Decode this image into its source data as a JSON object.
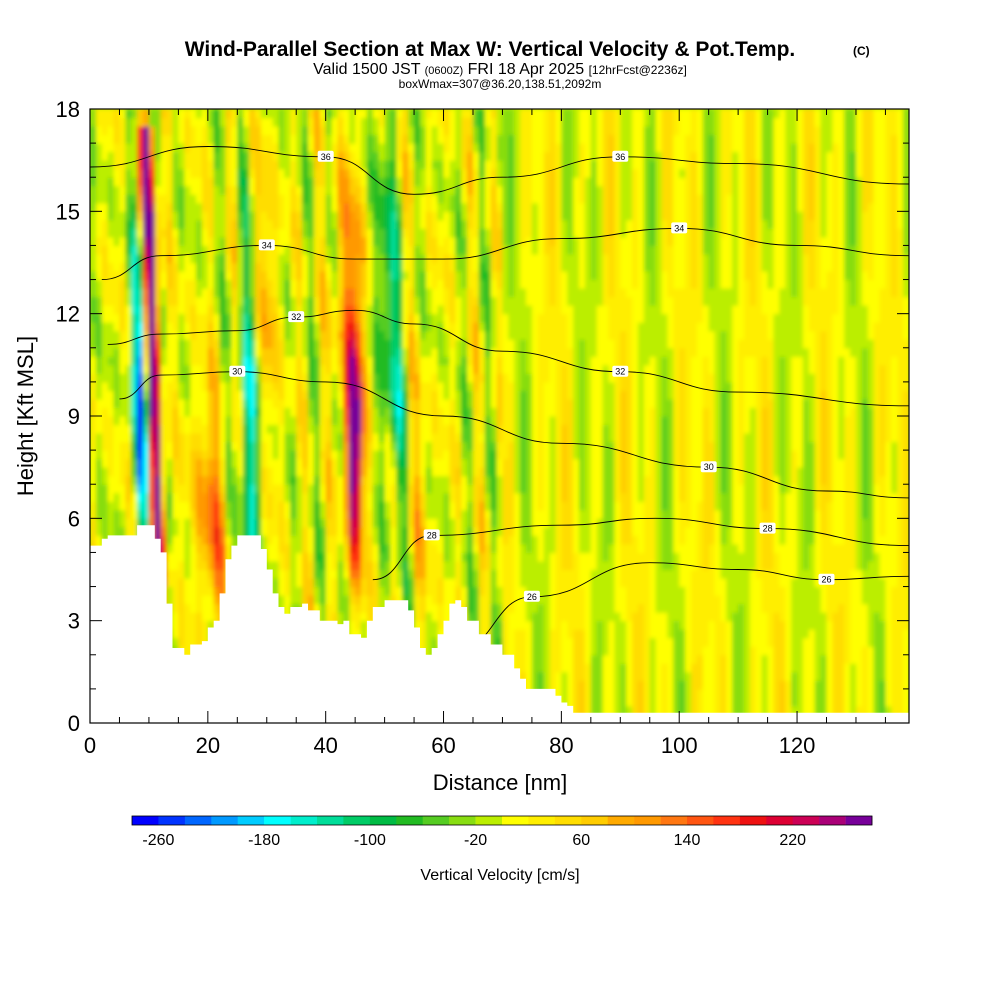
{
  "chart_data": {
    "type": "heatmap",
    "title": "Wind-Parallel Section at Max W: Vertical Velocity & Pot.Temp.",
    "title_mark": "(C)",
    "subtitle": {
      "prefix": "Valid 1500 JST",
      "small1": "(0600Z)",
      "middle": "FRI 18 Apr 2025",
      "small2": "[12hrFcst@2236z]"
    },
    "subtitle2": "boxWmax=307@36.20,138.51,2092m",
    "xlabel": "Distance [nm]",
    "ylabel": "Height [Kft MSL]",
    "xlim": [
      0,
      139
    ],
    "ylim": [
      0,
      18
    ],
    "x_ticks": [
      "0",
      "20",
      "40",
      "60",
      "80",
      "100",
      "120"
    ],
    "y_ticks": [
      "0",
      "3",
      "6",
      "9",
      "12",
      "15",
      "18"
    ],
    "colorbar": {
      "label": "Vertical Velocity [cm/s]",
      "tick_labels": [
        "-260",
        "-180",
        "-100",
        "-20",
        "60",
        "140",
        "220"
      ],
      "tick_values": [
        -260,
        -180,
        -100,
        -20,
        60,
        140,
        220
      ],
      "range": [
        -280,
        280
      ],
      "bin_width": 20,
      "colors": [
        "#0000ff",
        "#0033ff",
        "#0066ff",
        "#0099ff",
        "#00ccff",
        "#00ffff",
        "#00eecc",
        "#00dd99",
        "#00cc66",
        "#00bb44",
        "#22bb22",
        "#55cc22",
        "#88dd11",
        "#bbee00",
        "#ffff00",
        "#ffee00",
        "#ffdd00",
        "#ffcc00",
        "#ffaa00",
        "#ff9900",
        "#ff7711",
        "#ff5511",
        "#ff3311",
        "#ee1111",
        "#dd0033",
        "#cc0055",
        "#aa0077",
        "#770099"
      ]
    },
    "theta_contours": [
      {
        "label": "26",
        "points": [
          [
            62,
            2.1
          ],
          [
            75,
            3.7
          ],
          [
            95,
            4.7
          ],
          [
            110,
            4.5
          ],
          [
            125,
            4.2
          ],
          [
            139,
            4.3
          ]
        ]
      },
      {
        "label": "28",
        "points": [
          [
            48,
            4.2
          ],
          [
            58,
            5.5
          ],
          [
            80,
            5.8
          ],
          [
            96,
            6.0
          ],
          [
            115,
            5.7
          ],
          [
            139,
            5.2
          ]
        ]
      },
      {
        "label": "30",
        "points": [
          [
            5,
            9.5
          ],
          [
            12,
            10.2
          ],
          [
            25,
            10.3
          ],
          [
            40,
            10.0
          ],
          [
            60,
            9.0
          ],
          [
            80,
            8.2
          ],
          [
            105,
            7.5
          ],
          [
            125,
            6.8
          ],
          [
            139,
            6.6
          ]
        ]
      },
      {
        "label": "32",
        "points": [
          [
            3,
            11.1
          ],
          [
            12,
            11.4
          ],
          [
            25,
            11.5
          ],
          [
            35,
            11.9
          ],
          [
            45,
            12.1
          ],
          [
            55,
            11.7
          ],
          [
            70,
            10.9
          ],
          [
            90,
            10.3
          ],
          [
            110,
            9.7
          ],
          [
            139,
            9.3
          ]
        ]
      },
      {
        "label": "34",
        "points": [
          [
            2,
            13.0
          ],
          [
            12,
            13.7
          ],
          [
            30,
            14.0
          ],
          [
            45,
            13.6
          ],
          [
            60,
            13.6
          ],
          [
            80,
            14.2
          ],
          [
            100,
            14.5
          ],
          [
            120,
            14.0
          ],
          [
            139,
            13.7
          ]
        ]
      },
      {
        "label": "36",
        "points": [
          [
            0,
            16.3
          ],
          [
            20,
            16.9
          ],
          [
            40,
            16.6
          ],
          [
            55,
            15.5
          ],
          [
            70,
            16.0
          ],
          [
            90,
            16.6
          ],
          [
            110,
            16.4
          ],
          [
            139,
            15.8
          ]
        ]
      }
    ],
    "terrain_kft": [
      [
        0,
        5.2
      ],
      [
        2,
        5.4
      ],
      [
        3,
        5.5
      ],
      [
        7,
        5.5
      ],
      [
        8,
        5.8
      ],
      [
        10,
        5.8
      ],
      [
        11,
        5.4
      ],
      [
        12,
        5.0
      ],
      [
        13,
        3.5
      ],
      [
        14,
        2.2
      ],
      [
        16,
        2.0
      ],
      [
        17,
        2.3
      ],
      [
        19,
        2.4
      ],
      [
        20,
        2.8
      ],
      [
        21,
        3.0
      ],
      [
        22,
        3.8
      ],
      [
        23,
        4.8
      ],
      [
        24,
        5.2
      ],
      [
        25,
        5.5
      ],
      [
        28,
        5.5
      ],
      [
        29,
        5.1
      ],
      [
        30,
        4.5
      ],
      [
        31,
        3.8
      ],
      [
        32,
        3.4
      ],
      [
        33,
        3.2
      ],
      [
        34,
        3.4
      ],
      [
        36,
        3.5
      ],
      [
        37,
        3.3
      ],
      [
        39,
        3.0
      ],
      [
        42,
        2.9
      ],
      [
        43,
        3.0
      ],
      [
        44,
        2.6
      ],
      [
        46,
        2.5
      ],
      [
        47,
        3.0
      ],
      [
        48,
        3.4
      ],
      [
        50,
        3.6
      ],
      [
        53,
        3.6
      ],
      [
        54,
        3.3
      ],
      [
        55,
        2.8
      ],
      [
        56,
        2.2
      ],
      [
        57,
        2.0
      ],
      [
        58,
        2.2
      ],
      [
        59,
        2.6
      ],
      [
        60,
        3.0
      ],
      [
        61,
        3.5
      ],
      [
        62,
        3.6
      ],
      [
        63,
        3.4
      ],
      [
        64,
        3.0
      ],
      [
        66,
        2.6
      ],
      [
        68,
        2.3
      ],
      [
        70,
        2.0
      ],
      [
        72,
        1.6
      ],
      [
        73,
        1.3
      ],
      [
        74,
        1.0
      ],
      [
        78,
        1.0
      ],
      [
        79,
        0.8
      ],
      [
        80,
        0.6
      ],
      [
        81,
        0.5
      ],
      [
        82,
        0.3
      ],
      [
        139,
        0.3
      ]
    ]
  }
}
